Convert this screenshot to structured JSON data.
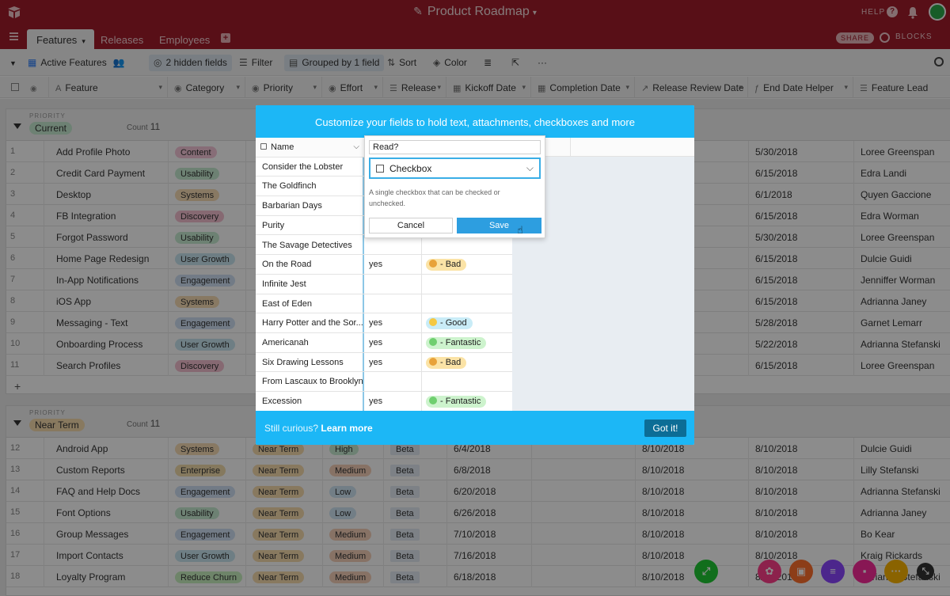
{
  "app": {
    "title": "Product Roadmap",
    "help_label": "HELP"
  },
  "tabs": [
    {
      "label": "Features"
    },
    {
      "label": "Releases"
    },
    {
      "label": "Employees"
    }
  ],
  "tabsbar": {
    "share_label": "SHARE",
    "blocks_label": "BLOCKS"
  },
  "toolbar": {
    "view_name": "Active Features",
    "hidden_fields": "2 hidden fields",
    "filter": "Filter",
    "grouped": "Grouped by 1 field",
    "sort": "Sort",
    "color": "Color"
  },
  "columns": [
    "Feature",
    "Category",
    "Priority",
    "Effort",
    "Release",
    "Kickoff Date",
    "Completion Date",
    "Release Review Date",
    "End Date Helper",
    "Feature Lead"
  ],
  "groups": [
    {
      "label": "PRIORITY",
      "name": "Current",
      "count_label": "Count",
      "count": "11",
      "rows": [
        {
          "num": "1",
          "feature": "Add Profile Photo",
          "category": "Content",
          "end": "5/30/2018",
          "lead": "Loree Greenspan"
        },
        {
          "num": "2",
          "feature": "Credit Card Payment",
          "category": "Usability",
          "end": "6/15/2018",
          "lead": "Edra Landi"
        },
        {
          "num": "3",
          "feature": "Desktop",
          "category": "Systems",
          "end": "6/1/2018",
          "lead": "Quyen Gaccione"
        },
        {
          "num": "4",
          "feature": "FB Integration",
          "category": "Discovery",
          "end": "6/15/2018",
          "lead": "Edra Worman"
        },
        {
          "num": "5",
          "feature": "Forgot Password",
          "category": "Usability",
          "end": "5/30/2018",
          "lead": "Loree Greenspan"
        },
        {
          "num": "6",
          "feature": "Home Page Redesign",
          "category": "User Growth",
          "end": "6/15/2018",
          "lead": "Dulcie Guidi"
        },
        {
          "num": "7",
          "feature": "In-App Notifications",
          "category": "Engagement",
          "end": "6/15/2018",
          "lead": "Jenniffer Worman"
        },
        {
          "num": "8",
          "feature": "iOS App",
          "category": "Systems",
          "end": "6/15/2018",
          "lead": "Adrianna Janey"
        },
        {
          "num": "9",
          "feature": "Messaging - Text",
          "category": "Engagement",
          "end": "5/28/2018",
          "lead": "Garnet Lemarr"
        },
        {
          "num": "10",
          "feature": "Onboarding Process",
          "category": "User Growth",
          "end": "5/22/2018",
          "lead": "Adrianna Stefanski"
        },
        {
          "num": "11",
          "feature": "Search Profiles",
          "category": "Discovery",
          "end": "6/15/2018",
          "lead": "Loree Greenspan"
        }
      ]
    },
    {
      "label": "PRIORITY",
      "name": "Near Term",
      "count_label": "Count",
      "count": "11",
      "rows": [
        {
          "num": "12",
          "feature": "Android App",
          "category": "Systems",
          "priority": "Near Term",
          "effort": "High",
          "release": "Beta",
          "kickoff": "6/4/2018",
          "review": "8/10/2018",
          "end": "8/10/2018",
          "lead": "Dulcie Guidi"
        },
        {
          "num": "13",
          "feature": "Custom Reports",
          "category": "Enterprise",
          "priority": "Near Term",
          "effort": "Medium",
          "release": "Beta",
          "kickoff": "6/8/2018",
          "review": "8/10/2018",
          "end": "8/10/2018",
          "lead": "Lilly Stefanski"
        },
        {
          "num": "14",
          "feature": "FAQ and Help Docs",
          "category": "Engagement",
          "priority": "Near Term",
          "effort": "Low",
          "release": "Beta",
          "kickoff": "6/20/2018",
          "review": "8/10/2018",
          "end": "8/10/2018",
          "lead": "Adrianna Stefanski"
        },
        {
          "num": "15",
          "feature": "Font Options",
          "category": "Usability",
          "priority": "Near Term",
          "effort": "Low",
          "release": "Beta",
          "kickoff": "6/26/2018",
          "review": "8/10/2018",
          "end": "8/10/2018",
          "lead": "Adrianna Janey"
        },
        {
          "num": "16",
          "feature": "Group Messages",
          "category": "Engagement",
          "priority": "Near Term",
          "effort": "Medium",
          "release": "Beta",
          "kickoff": "7/10/2018",
          "review": "8/10/2018",
          "end": "8/10/2018",
          "lead": "Bo Kear"
        },
        {
          "num": "17",
          "feature": "Import Contacts",
          "category": "User Growth",
          "priority": "Near Term",
          "effort": "Medium",
          "release": "Beta",
          "kickoff": "7/16/2018",
          "review": "8/10/2018",
          "end": "8/10/2018",
          "lead": "Kraig Rickards"
        },
        {
          "num": "18",
          "feature": "Loyalty Program",
          "category": "Reduce Churn",
          "priority": "Near Term",
          "effort": "Medium",
          "release": "Beta",
          "kickoff": "6/18/2018",
          "review": "8/10/2018",
          "end": "8/10/2018",
          "lead": "Adrianna Stefanski"
        }
      ]
    }
  ],
  "category_colors": {
    "Content": "#f6c7d9",
    "Usability": "#c6ecd2",
    "Systems": "#f7ddb4",
    "Discovery": "#f4bfd0",
    "User Growth": "#c8e6f0",
    "Engagement": "#cfe1f5",
    "Enterprise": "#f3dcab",
    "Reduce Churn": "#c8f0c0"
  },
  "modal": {
    "heading": "Customize your fields to hold text, attachments, checkboxes and more",
    "footer_text": "Still curious?",
    "footer_link": "Learn more",
    "got_it": "Got it!",
    "name_header": "Name",
    "books": [
      {
        "name": "Consider the Lobster",
        "read": "",
        "rating": ""
      },
      {
        "name": "The Goldfinch",
        "read": "",
        "rating": ""
      },
      {
        "name": "Barbarian Days",
        "read": "",
        "rating": ""
      },
      {
        "name": "Purity",
        "read": "",
        "rating": ""
      },
      {
        "name": "The Savage Detectives",
        "read": "",
        "rating": ""
      },
      {
        "name": "On the Road",
        "read": "yes",
        "rating": "- Bad"
      },
      {
        "name": "Infinite Jest",
        "read": "",
        "rating": ""
      },
      {
        "name": "East of Eden",
        "read": "",
        "rating": ""
      },
      {
        "name": "Harry Potter and the Sor...",
        "read": "yes",
        "rating": "- Good"
      },
      {
        "name": "Americanah",
        "read": "yes",
        "rating": "- Fantastic"
      },
      {
        "name": "Six Drawing Lessons",
        "read": "yes",
        "rating": "- Bad"
      },
      {
        "name": "From Lascaux to Brooklyn",
        "read": "",
        "rating": ""
      },
      {
        "name": "Excession",
        "read": "yes",
        "rating": "- Fantastic"
      }
    ],
    "rating_colors": {
      "- Bad": "#fbe3a6",
      "- Good": "#c9ecf7",
      "- Fantastic": "#cdf3cd"
    },
    "field_editor": {
      "field_name": "Read?",
      "field_type": "Checkbox",
      "description": "A single checkbox that can be checked or unchecked.",
      "cancel": "Cancel",
      "save": "Save"
    }
  }
}
